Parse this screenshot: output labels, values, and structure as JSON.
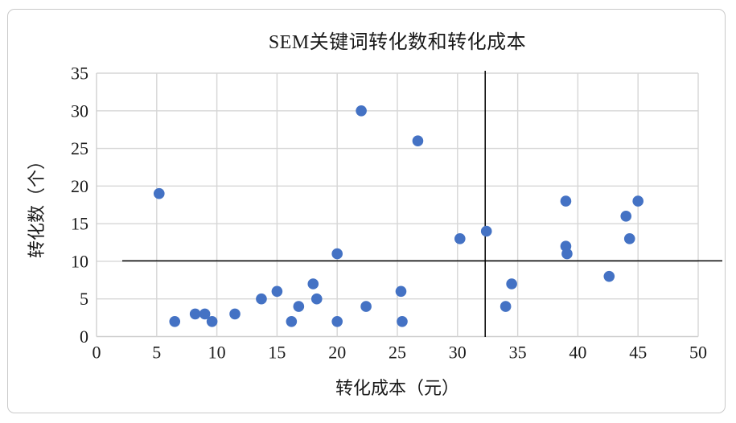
{
  "figure": {
    "title": "SEM关键词转化数和转化成本",
    "xlabel": "转化成本（元）",
    "ylabel": "转化数（个）"
  },
  "chart_data": {
    "type": "scatter",
    "title": "SEM关键词转化数和转化成本",
    "xlabel": "转化成本（元）",
    "ylabel": "转化数（个）",
    "xlim": [
      0,
      50
    ],
    "ylim": [
      0,
      35
    ],
    "x_ticks": [
      0,
      5,
      10,
      15,
      20,
      25,
      30,
      35,
      40,
      45,
      50
    ],
    "y_ticks": [
      0,
      5,
      10,
      15,
      20,
      25,
      30,
      35
    ],
    "grid": true,
    "legend": false,
    "marker_color": "#4472C4",
    "grid_color": "#d6d6d6",
    "axis_line_color": "#cfcfcf",
    "text_color": "#1a1a1a",
    "reference_lines": {
      "vertical_x": 32.3,
      "horizontal_y": 10,
      "color": "#000000"
    },
    "points": [
      [
        5.2,
        19
      ],
      [
        6.5,
        2
      ],
      [
        8.2,
        3
      ],
      [
        9,
        3
      ],
      [
        9.6,
        2
      ],
      [
        11.5,
        3
      ],
      [
        13.7,
        5
      ],
      [
        15,
        6
      ],
      [
        16.2,
        2
      ],
      [
        16.8,
        4
      ],
      [
        18,
        7
      ],
      [
        18.3,
        5
      ],
      [
        20,
        2
      ],
      [
        20,
        11
      ],
      [
        22,
        30
      ],
      [
        22.4,
        4
      ],
      [
        25.3,
        6
      ],
      [
        25.4,
        2
      ],
      [
        26.7,
        26
      ],
      [
        30.2,
        13
      ],
      [
        32.4,
        14
      ],
      [
        34,
        4
      ],
      [
        34.5,
        7
      ],
      [
        39,
        18
      ],
      [
        39,
        12
      ],
      [
        39.1,
        11
      ],
      [
        42.6,
        8
      ],
      [
        44,
        16
      ],
      [
        44.3,
        13
      ],
      [
        45,
        18
      ]
    ]
  }
}
